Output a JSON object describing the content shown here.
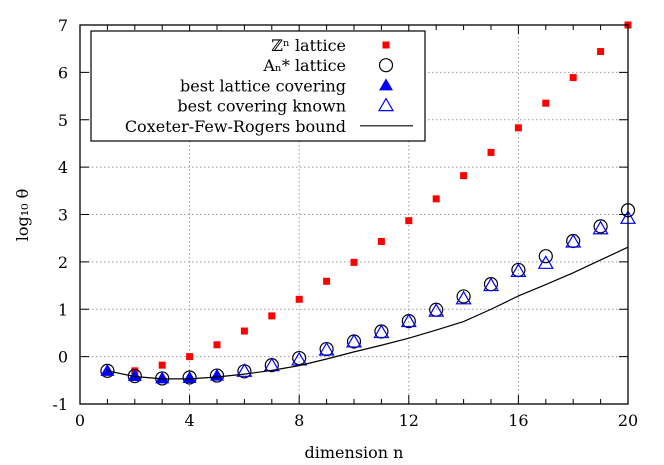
{
  "chart_data": {
    "type": "scatter",
    "xlabel": "dimension n",
    "ylabel": "log₁₀ θ",
    "xlim": [
      0,
      20
    ],
    "ylim": [
      -1,
      7
    ],
    "xticks": [
      0,
      4,
      8,
      12,
      16,
      20
    ],
    "yticks": [
      -1,
      0,
      1,
      2,
      3,
      4,
      5,
      6,
      7
    ],
    "grid": true,
    "legend_position": "top-left",
    "series": [
      {
        "name": "ℤⁿ lattice",
        "marker": "filled-square",
        "color": "#ff0000",
        "x": [
          2,
          3,
          4,
          5,
          6,
          7,
          8,
          9,
          10,
          11,
          12,
          13,
          14,
          15,
          16,
          17,
          18,
          19,
          20
        ],
        "y": [
          -0.3,
          -0.18,
          0.0,
          0.25,
          0.54,
          0.86,
          1.21,
          1.59,
          1.99,
          2.43,
          2.87,
          3.33,
          3.82,
          4.31,
          4.83,
          5.35,
          5.89,
          6.44,
          7.0
        ]
      },
      {
        "name": "Aₙ* lattice",
        "marker": "open-circle",
        "color": "#000000",
        "x": [
          1,
          2,
          3,
          4,
          5,
          6,
          7,
          8,
          9,
          10,
          11,
          12,
          13,
          14,
          15,
          16,
          17,
          18,
          19,
          20
        ],
        "y": [
          -0.3,
          -0.41,
          -0.46,
          -0.44,
          -0.4,
          -0.31,
          -0.18,
          -0.03,
          0.16,
          0.32,
          0.53,
          0.75,
          0.99,
          1.27,
          1.53,
          1.83,
          2.12,
          2.44,
          2.75,
          3.09
        ]
      },
      {
        "name": "best lattice covering",
        "marker": "filled-triangle",
        "color": "#0000ff",
        "x": [
          1,
          2,
          3,
          4,
          5
        ],
        "y": [
          -0.3,
          -0.41,
          -0.46,
          -0.45,
          -0.4
        ]
      },
      {
        "name": "best covering known",
        "marker": "open-triangle",
        "color": "#0000ff",
        "x": [
          6,
          7,
          8,
          9,
          10,
          11,
          12,
          13,
          14,
          15,
          16,
          17,
          18,
          19,
          20
        ],
        "y": [
          -0.31,
          -0.19,
          -0.07,
          0.14,
          0.31,
          0.51,
          0.74,
          0.96,
          1.22,
          1.5,
          1.8,
          1.97,
          2.42,
          2.7,
          2.92
        ]
      },
      {
        "name": "Coxeter-Few-Rogers bound",
        "marker": "line",
        "color": "#000000",
        "x": [
          1,
          2,
          3,
          4,
          5,
          6,
          7,
          8,
          9,
          10,
          11,
          12,
          13,
          14,
          15,
          16,
          17,
          18,
          19,
          20
        ],
        "y": [
          -0.3,
          -0.42,
          -0.47,
          -0.47,
          -0.43,
          -0.37,
          -0.29,
          -0.19,
          -0.05,
          0.1,
          0.24,
          0.39,
          0.56,
          0.74,
          1.0,
          1.28,
          1.52,
          1.77,
          2.04,
          2.31
        ]
      }
    ]
  }
}
